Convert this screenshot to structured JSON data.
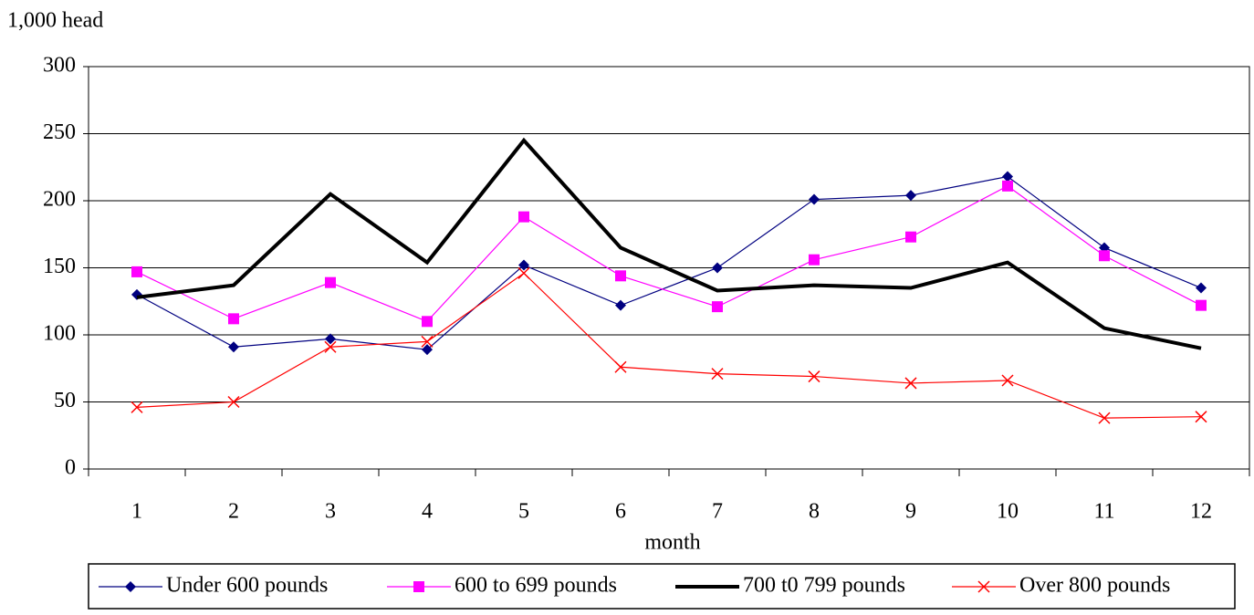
{
  "chart_data": {
    "type": "line",
    "y_axis_label": "1,000 head",
    "x_axis_label": "month",
    "categories": [
      "1",
      "2",
      "3",
      "4",
      "5",
      "6",
      "7",
      "8",
      "9",
      "10",
      "11",
      "12"
    ],
    "ylim": [
      0,
      300
    ],
    "yticks": [
      0,
      50,
      100,
      150,
      200,
      250,
      300
    ],
    "grid": true,
    "legend": "bottom",
    "series": [
      {
        "name": "Under 600 pounds",
        "color": "#000080",
        "marker": "diamond",
        "line_width": 1.2,
        "values": [
          130,
          91,
          97,
          89,
          152,
          122,
          150,
          201,
          204,
          218,
          165,
          135
        ]
      },
      {
        "name": "600 to 699 pounds",
        "color": "#ff00ff",
        "marker": "square",
        "line_width": 1.2,
        "values": [
          147,
          112,
          139,
          110,
          188,
          144,
          121,
          156,
          173,
          211,
          159,
          122
        ]
      },
      {
        "name": "700 t0 799 pounds",
        "color": "#000000",
        "marker": "none",
        "line_width": 4,
        "values": [
          128,
          137,
          205,
          154,
          245,
          165,
          133,
          137,
          135,
          154,
          105,
          90
        ]
      },
      {
        "name": "Over 800 pounds",
        "color": "#ff0000",
        "marker": "x",
        "line_width": 1.2,
        "values": [
          46,
          50,
          91,
          95,
          146,
          76,
          71,
          69,
          64,
          66,
          38,
          39
        ]
      }
    ]
  }
}
